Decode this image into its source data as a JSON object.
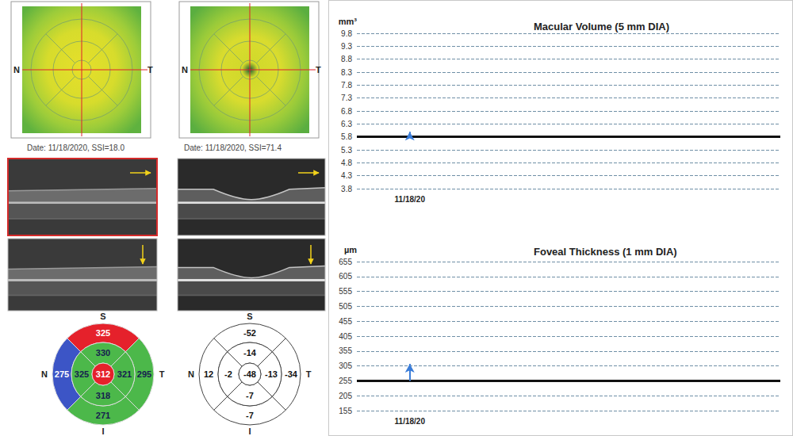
{
  "scans": [
    {
      "date": "Date: 11/18/2020, SSI=18.0",
      "left_label": "N",
      "right_label": "T"
    },
    {
      "date": "Date: 11/18/2020, SSI=71.4",
      "left_label": "N",
      "right_label": "T"
    }
  ],
  "sector_maps": [
    {
      "labels": {
        "top": "S",
        "left": "N",
        "right": "T",
        "bottom": "I"
      },
      "center": 312,
      "inner": {
        "S": 330,
        "N": 325,
        "T": 321,
        "I": 318
      },
      "outer": {
        "S": 325,
        "N": 275,
        "T": 295,
        "I": 271
      },
      "colors": {
        "center": "#e5212b",
        "inner": {
          "S": "#4cb84a",
          "N": "#4cb84a",
          "T": "#4cb84a",
          "I": "#4cb84a"
        },
        "outer": {
          "S": "#e5212b",
          "N": "#3c55c6",
          "T": "#4cb84a",
          "I": "#4cb84a"
        }
      }
    },
    {
      "labels": {
        "top": "S",
        "left": "N",
        "right": "T",
        "bottom": "I"
      },
      "center": -48,
      "inner": {
        "S": -14,
        "N": -2,
        "T": -13,
        "I": -7
      },
      "outer": {
        "S": -52,
        "N": 12,
        "T": -34,
        "I": -7
      },
      "colors": {
        "center": "#ffffff",
        "inner": {
          "S": "#ffffff",
          "N": "#ffffff",
          "T": "#ffffff",
          "I": "#ffffff"
        },
        "outer": {
          "S": "#ffffff",
          "N": "#ffffff",
          "T": "#ffffff",
          "I": "#ffffff"
        }
      }
    }
  ],
  "chart_data": [
    {
      "type": "line",
      "title": "Macular Volume (5 mm DIA)",
      "ylabel": "mm³",
      "categories": [
        "11/18/20"
      ],
      "values": [
        6.0
      ],
      "baseline": 5.8,
      "color": "#3b7dd8",
      "marker": "arrow",
      "ylim": [
        3.8,
        9.8
      ],
      "yticks": [
        3.8,
        4.3,
        4.8,
        5.3,
        5.8,
        6.3,
        6.8,
        7.3,
        7.8,
        8.3,
        8.8,
        9.3,
        9.8
      ],
      "grid": true
    },
    {
      "type": "line",
      "title": "Foveal Thickness (1 mm DIA)",
      "ylabel": "µm",
      "categories": [
        "11/18/20"
      ],
      "values": [
        312
      ],
      "baseline": 255,
      "color": "#3b7dd8",
      "marker": "arrow",
      "ylim": [
        155,
        655
      ],
      "yticks": [
        155,
        205,
        255,
        305,
        355,
        405,
        455,
        505,
        555,
        605,
        655
      ],
      "grid": true
    }
  ]
}
